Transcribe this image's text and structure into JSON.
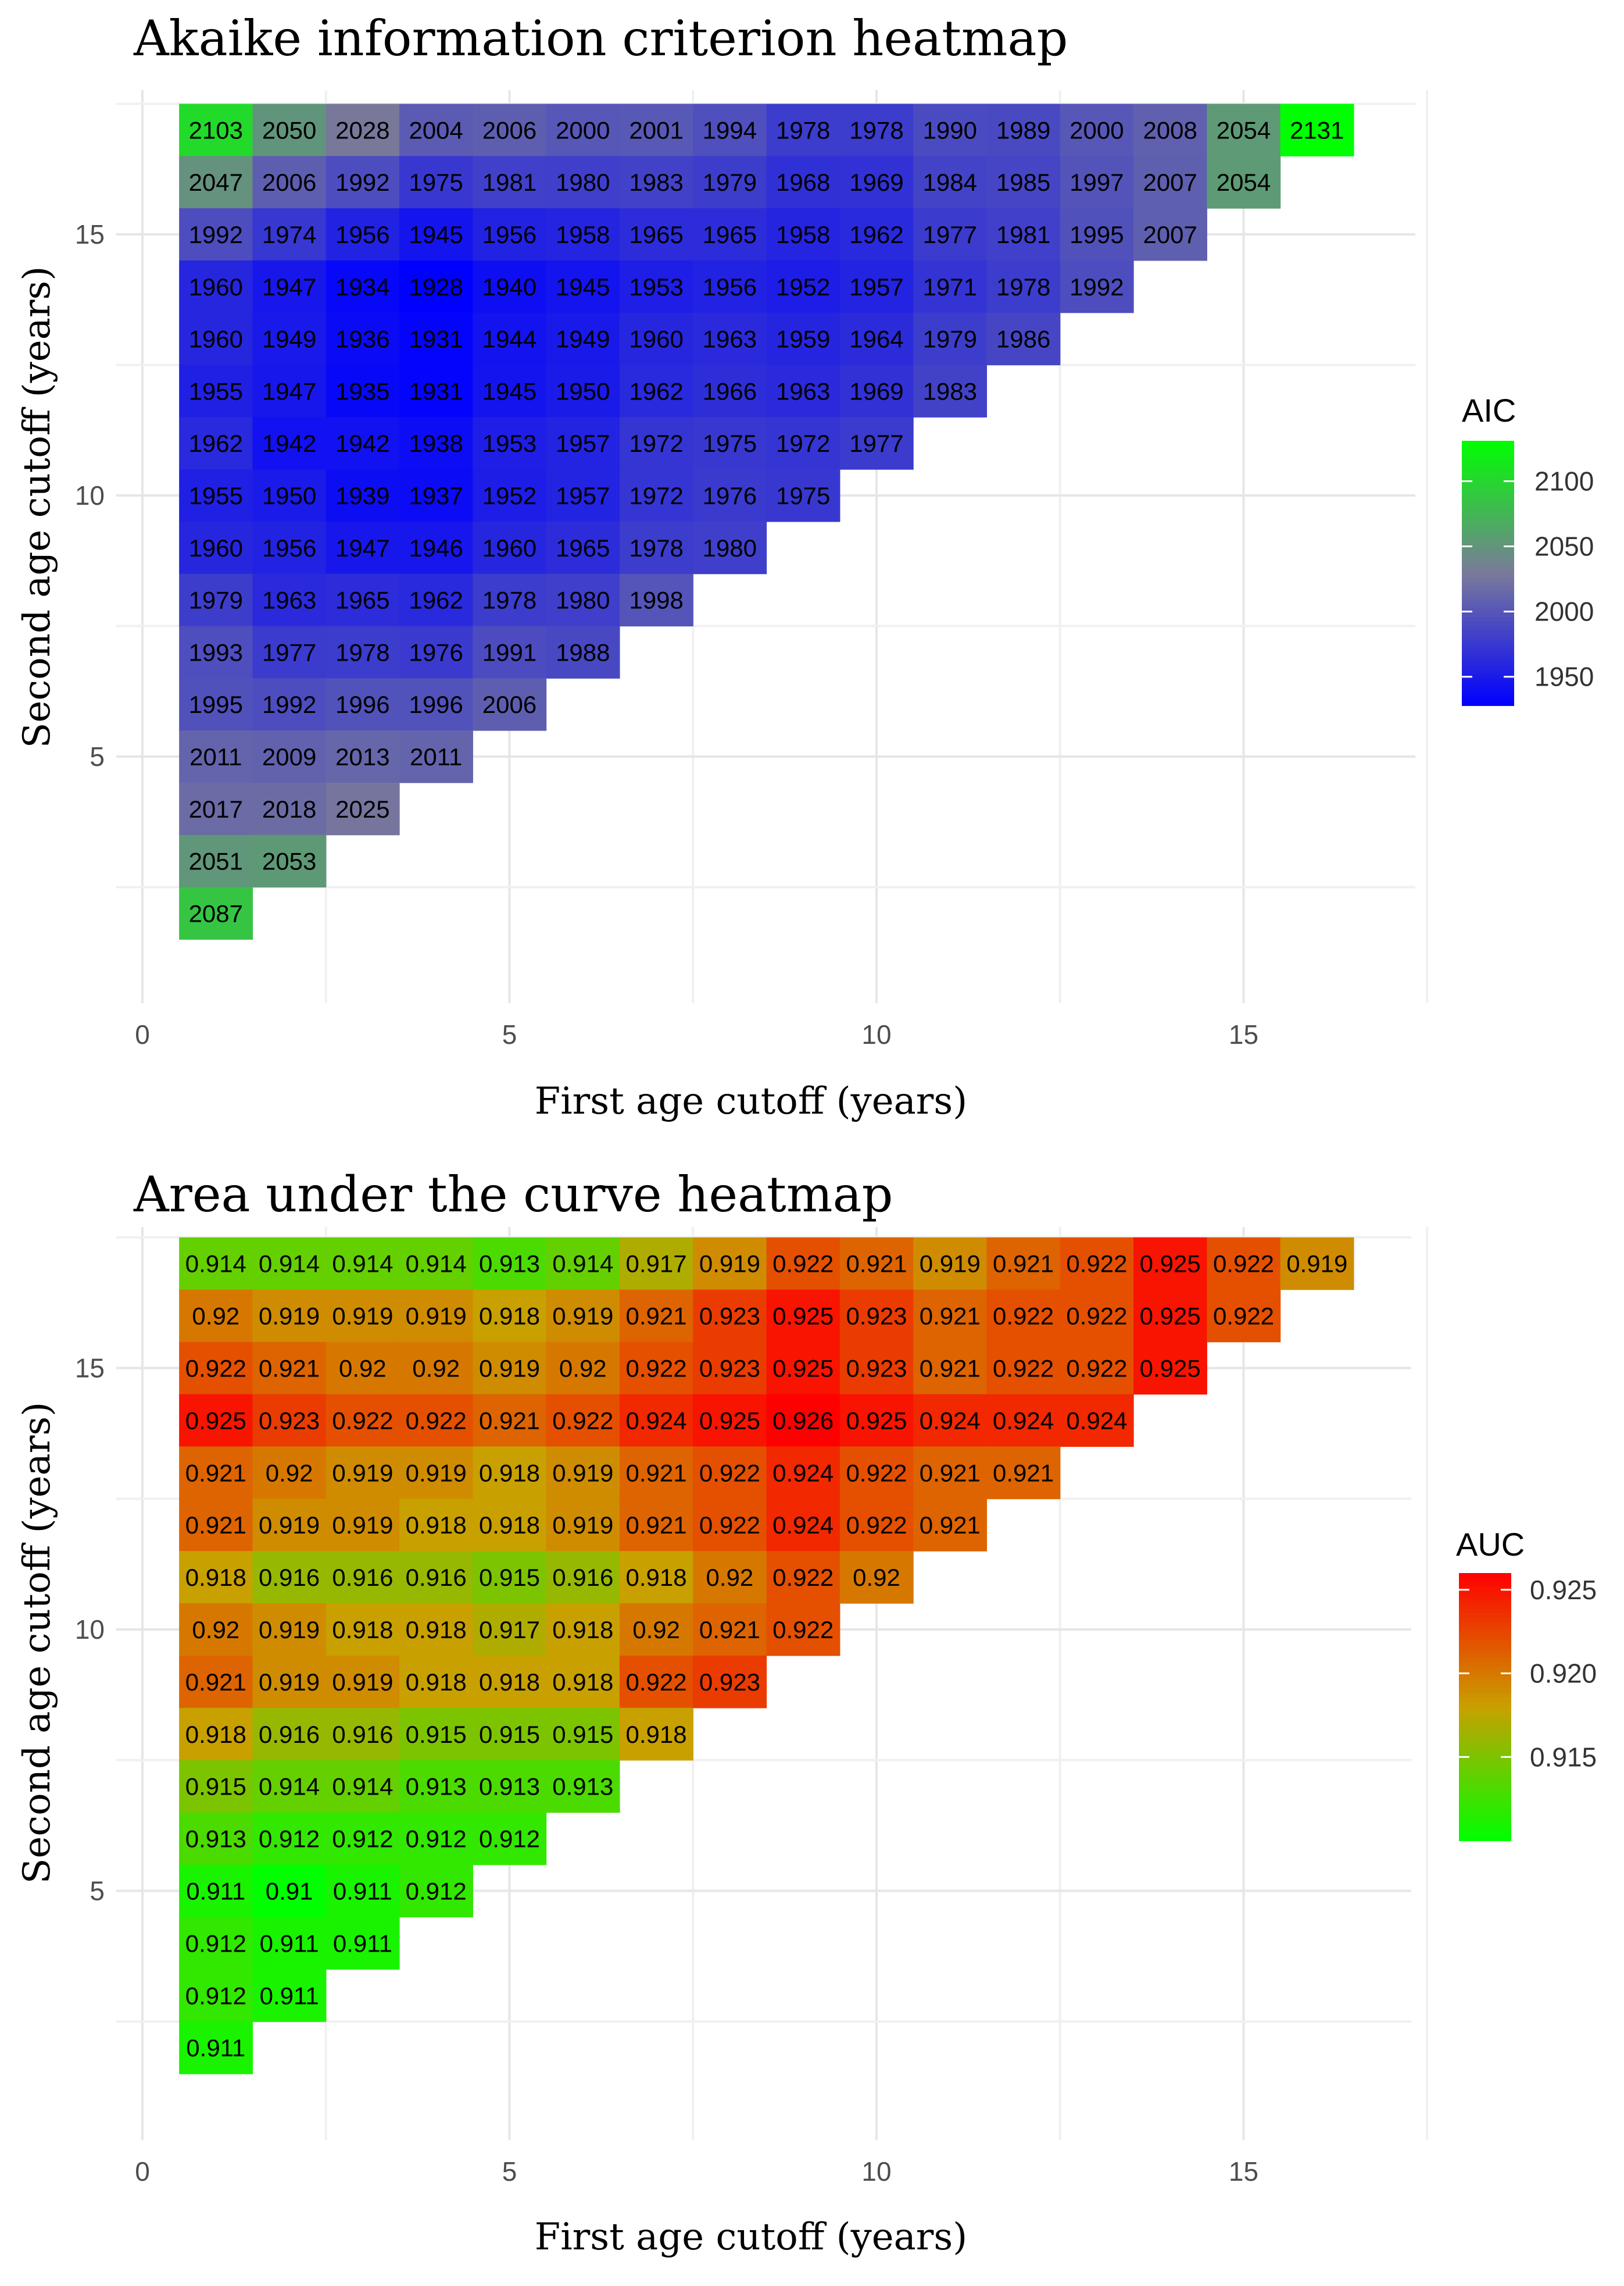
{
  "chart_data": [
    {
      "type": "heatmap",
      "title": "Akaike information criterion heatmap",
      "xlabel": "First age cutoff (years)",
      "ylabel": "Second age  cutoff (years)",
      "xlim": [
        0,
        17.5
      ],
      "ylim": [
        1,
        17.5
      ],
      "x_ticks": [
        "0",
        "5",
        "10",
        "15"
      ],
      "y_ticks": [
        "5",
        "10",
        "15"
      ],
      "legend_title": "AIC",
      "legend_ticks": [
        "2100",
        "2050",
        "2000",
        "1950"
      ],
      "scale": {
        "low": 1928,
        "high": 2131,
        "low_color": "#0000ff",
        "mid_color": "#7a7a9a",
        "high_color": "#00ff00"
      },
      "rows": [
        {
          "y": 17,
          "values": [
            2103,
            2050,
            2028,
            2004,
            2006,
            2000,
            2001,
            1994,
            1978,
            1978,
            1990,
            1989,
            2000,
            2008,
            2054,
            2131
          ]
        },
        {
          "y": 16,
          "values": [
            2047,
            2006,
            1992,
            1975,
            1981,
            1980,
            1983,
            1979,
            1968,
            1969,
            1984,
            1985,
            1997,
            2007,
            2054
          ]
        },
        {
          "y": 15,
          "values": [
            1992,
            1974,
            1956,
            1945,
            1956,
            1958,
            1965,
            1965,
            1958,
            1962,
            1977,
            1981,
            1995,
            2007
          ]
        },
        {
          "y": 14,
          "values": [
            1960,
            1947,
            1934,
            1928,
            1940,
            1945,
            1953,
            1956,
            1952,
            1957,
            1971,
            1978,
            1992
          ]
        },
        {
          "y": 13,
          "values": [
            1960,
            1949,
            1936,
            1931,
            1944,
            1949,
            1960,
            1963,
            1959,
            1964,
            1979,
            1986
          ]
        },
        {
          "y": 12,
          "values": [
            1955,
            1947,
            1935,
            1931,
            1945,
            1950,
            1962,
            1966,
            1963,
            1969,
            1983
          ]
        },
        {
          "y": 11,
          "values": [
            1962,
            1942,
            1942,
            1938,
            1953,
            1957,
            1972,
            1975,
            1972,
            1977
          ]
        },
        {
          "y": 10,
          "values": [
            1955,
            1950,
            1939,
            1937,
            1952,
            1957,
            1972,
            1976,
            1975
          ]
        },
        {
          "y": 9,
          "values": [
            1960,
            1956,
            1947,
            1946,
            1960,
            1965,
            1978,
            1980
          ]
        },
        {
          "y": 8,
          "values": [
            1979,
            1963,
            1965,
            1962,
            1978,
            1980,
            1998
          ]
        },
        {
          "y": 7,
          "values": [
            1993,
            1977,
            1978,
            1976,
            1991,
            1988
          ]
        },
        {
          "y": 6,
          "values": [
            1995,
            1992,
            1996,
            1996,
            2006
          ]
        },
        {
          "y": 5,
          "values": [
            2011,
            2009,
            2013,
            2011
          ]
        },
        {
          "y": 4,
          "values": [
            2017,
            2018,
            2025
          ]
        },
        {
          "y": 3,
          "values": [
            2051,
            2053
          ]
        },
        {
          "y": 2,
          "values": [
            2087
          ]
        }
      ]
    },
    {
      "type": "heatmap",
      "title": "Area under the curve heatmap",
      "xlabel": "First age cutoff (years)",
      "ylabel": "Second age  cutoff (years)",
      "xlim": [
        0,
        17.5
      ],
      "ylim": [
        1,
        17.5
      ],
      "x_ticks": [
        "0",
        "5",
        "10",
        "15"
      ],
      "y_ticks": [
        "5",
        "10",
        "15"
      ],
      "legend_title": "AUC",
      "legend_ticks": [
        "0.925",
        "0.920",
        "0.915"
      ],
      "scale": {
        "low": 0.91,
        "high": 0.926,
        "low_color": "#00ff00",
        "mid_color": "#c8a000",
        "high_color": "#ff0000"
      },
      "rows": [
        {
          "y": 17,
          "values": [
            "0.914",
            "0.914",
            "0.914",
            "0.914",
            "0.913",
            "0.914",
            "0.917",
            "0.919",
            "0.922",
            "0.921",
            "0.919",
            "0.921",
            "0.922",
            "0.925",
            "0.922",
            "0.919"
          ]
        },
        {
          "y": 16,
          "values": [
            "0.92",
            "0.919",
            "0.919",
            "0.919",
            "0.918",
            "0.919",
            "0.921",
            "0.923",
            "0.925",
            "0.923",
            "0.921",
            "0.922",
            "0.922",
            "0.925",
            "0.922"
          ]
        },
        {
          "y": 15,
          "values": [
            "0.922",
            "0.921",
            "0.92",
            "0.92",
            "0.919",
            "0.92",
            "0.922",
            "0.923",
            "0.925",
            "0.923",
            "0.921",
            "0.922",
            "0.922",
            "0.925"
          ]
        },
        {
          "y": 14,
          "values": [
            "0.925",
            "0.923",
            "0.922",
            "0.922",
            "0.921",
            "0.922",
            "0.924",
            "0.925",
            "0.926",
            "0.925",
            "0.924",
            "0.924",
            "0.924"
          ]
        },
        {
          "y": 13,
          "values": [
            "0.921",
            "0.92",
            "0.919",
            "0.919",
            "0.918",
            "0.919",
            "0.921",
            "0.922",
            "0.924",
            "0.922",
            "0.921",
            "0.921"
          ]
        },
        {
          "y": 12,
          "values": [
            "0.921",
            "0.919",
            "0.919",
            "0.918",
            "0.918",
            "0.919",
            "0.921",
            "0.922",
            "0.924",
            "0.922",
            "0.921"
          ]
        },
        {
          "y": 11,
          "values": [
            "0.918",
            "0.916",
            "0.916",
            "0.916",
            "0.915",
            "0.916",
            "0.918",
            "0.92",
            "0.922",
            "0.92"
          ]
        },
        {
          "y": 10,
          "values": [
            "0.92",
            "0.919",
            "0.918",
            "0.918",
            "0.917",
            "0.918",
            "0.92",
            "0.921",
            "0.922"
          ]
        },
        {
          "y": 9,
          "values": [
            "0.921",
            "0.919",
            "0.919",
            "0.918",
            "0.918",
            "0.918",
            "0.922",
            "0.923"
          ]
        },
        {
          "y": 8,
          "values": [
            "0.918",
            "0.916",
            "0.916",
            "0.915",
            "0.915",
            "0.915",
            "0.918"
          ]
        },
        {
          "y": 7,
          "values": [
            "0.915",
            "0.914",
            "0.914",
            "0.913",
            "0.913",
            "0.913"
          ]
        },
        {
          "y": 6,
          "values": [
            "0.913",
            "0.912",
            "0.912",
            "0.912",
            "0.912"
          ]
        },
        {
          "y": 5,
          "values": [
            "0.911",
            "0.91",
            "0.911",
            "0.912"
          ]
        },
        {
          "y": 4,
          "values": [
            "0.912",
            "0.911",
            "0.911"
          ]
        },
        {
          "y": 3,
          "values": [
            "0.912",
            "0.911"
          ]
        },
        {
          "y": 2,
          "values": [
            "0.911"
          ]
        }
      ]
    }
  ]
}
